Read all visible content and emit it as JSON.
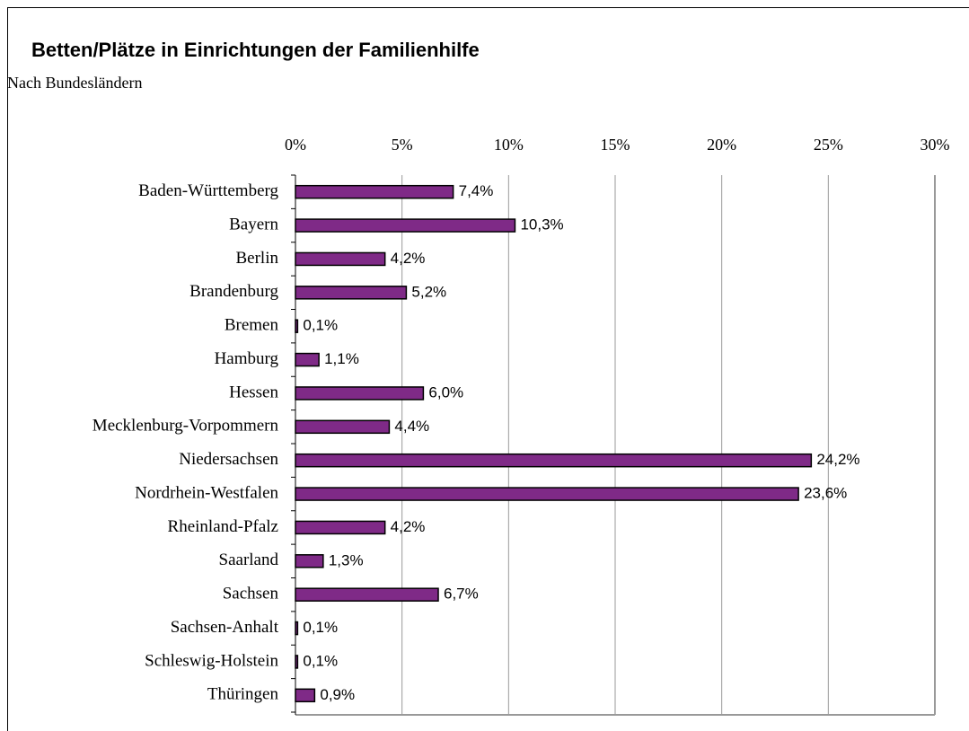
{
  "chart_data": {
    "type": "bar",
    "orientation": "horizontal",
    "title": "Betten/Plätze in Einrichtungen der Familienhilfe",
    "subtitle": "Nach Bundesländern",
    "categories": [
      "Baden-Württemberg",
      "Bayern",
      "Berlin",
      "Brandenburg",
      "Bremen",
      "Hamburg",
      "Hessen",
      "Mecklenburg-Vorpommern",
      "Niedersachsen",
      "Nordrhein-Westfalen",
      "Rheinland-Pfalz",
      "Saarland",
      "Sachsen",
      "Sachsen-Anhalt",
      "Schleswig-Holstein",
      "Thüringen"
    ],
    "values": [
      7.4,
      10.3,
      4.2,
      5.2,
      0.1,
      1.1,
      6.0,
      4.4,
      24.2,
      23.6,
      4.2,
      1.3,
      6.7,
      0.1,
      0.1,
      0.9
    ],
    "value_labels": [
      "7,4%",
      "10,3%",
      "4,2%",
      "5,2%",
      "0,1%",
      "1,1%",
      "6,0%",
      "4,4%",
      "24,2%",
      "23,6%",
      "4,2%",
      "1,3%",
      "6,7%",
      "0,1%",
      "0,1%",
      "0,9%"
    ],
    "color": "#7f2a87",
    "xlim": [
      0,
      30
    ],
    "xticks": [
      {
        "value": 0,
        "label": "0%"
      },
      {
        "value": 5,
        "label": "5%"
      },
      {
        "value": 10,
        "label": "10%"
      },
      {
        "value": 15,
        "label": "15%"
      },
      {
        "value": 20,
        "label": "20%"
      },
      {
        "value": 25,
        "label": "25%"
      },
      {
        "value": 30,
        "label": "30%"
      }
    ],
    "grid": true
  }
}
